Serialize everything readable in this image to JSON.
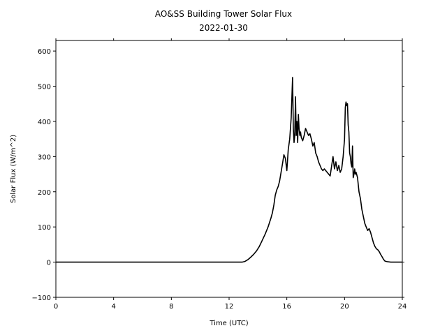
{
  "chart_data": {
    "type": "line",
    "title": "AO&SS Building Tower Solar Flux",
    "subtitle": "2022-01-30",
    "xlabel": "Time (UTC)",
    "ylabel": "Solar Flux (W/m^2)",
    "xlim": [
      0,
      24
    ],
    "ylim": [
      -100,
      630
    ],
    "xticks": [
      0,
      4,
      8,
      12,
      16,
      20,
      24
    ],
    "yticks": [
      -100,
      0,
      100,
      200,
      300,
      400,
      500,
      600
    ],
    "grid": false,
    "series": [
      {
        "color": "#000000",
        "x": [
          0,
          12.9,
          13.1,
          13.3,
          13.5,
          13.7,
          13.9,
          14.1,
          14.3,
          14.5,
          14.7,
          14.9,
          15.0,
          15.1,
          15.2,
          15.3,
          15.4,
          15.5,
          15.6,
          15.7,
          15.8,
          15.9,
          16.0,
          16.1,
          16.2,
          16.3,
          16.4,
          16.45,
          16.5,
          16.55,
          16.6,
          16.65,
          16.7,
          16.75,
          16.8,
          16.85,
          16.9,
          16.95,
          17.0,
          17.1,
          17.2,
          17.3,
          17.4,
          17.5,
          17.6,
          17.7,
          17.8,
          17.9,
          18.0,
          18.1,
          18.2,
          18.3,
          18.4,
          18.5,
          18.6,
          18.8,
          19.0,
          19.2,
          19.3,
          19.4,
          19.5,
          19.6,
          19.7,
          19.8,
          19.9,
          20.0,
          20.05,
          20.1,
          20.15,
          20.2,
          20.25,
          20.3,
          20.35,
          20.4,
          20.45,
          20.5,
          20.55,
          20.6,
          20.65,
          20.7,
          20.75,
          20.8,
          20.9,
          21.0,
          21.1,
          21.2,
          21.3,
          21.4,
          21.5,
          21.6,
          21.7,
          21.8,
          21.9,
          22.0,
          22.1,
          22.2,
          22.3,
          22.4,
          22.5,
          22.6,
          22.7,
          22.8,
          23.0,
          23.2,
          23.5,
          24
        ],
        "y": [
          0,
          0,
          2,
          7,
          14,
          22,
          32,
          45,
          62,
          80,
          100,
          125,
          140,
          162,
          190,
          205,
          215,
          230,
          255,
          280,
          305,
          295,
          260,
          320,
          350,
          410,
          525,
          380,
          340,
          360,
          470,
          360,
          400,
          340,
          420,
          380,
          360,
          370,
          355,
          345,
          360,
          380,
          370,
          360,
          365,
          350,
          330,
          340,
          310,
          300,
          285,
          275,
          265,
          260,
          265,
          255,
          245,
          300,
          265,
          285,
          260,
          275,
          255,
          265,
          300,
          350,
          440,
          455,
          445,
          450,
          390,
          370,
          310,
          300,
          280,
          270,
          330,
          240,
          250,
          265,
          250,
          255,
          240,
          200,
          180,
          150,
          130,
          110,
          100,
          90,
          95,
          85,
          70,
          55,
          45,
          38,
          35,
          30,
          22,
          15,
          8,
          3,
          1,
          0,
          0,
          0
        ]
      }
    ]
  }
}
